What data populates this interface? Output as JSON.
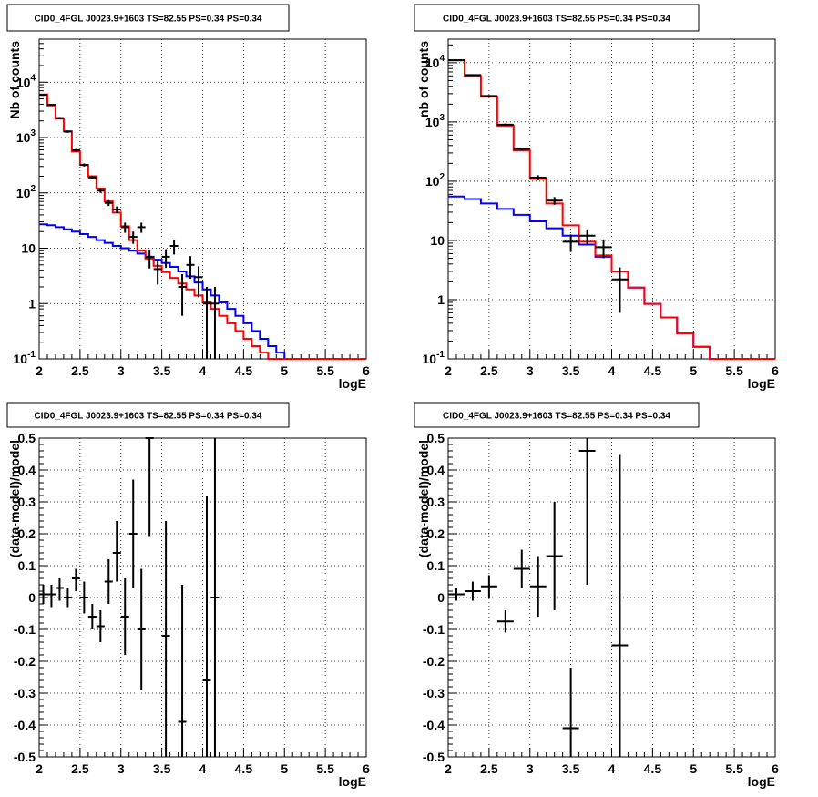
{
  "chart_data": [
    {
      "type": "line",
      "title": "CID0_4FGL J0023.9+1603 TS=82.55 PS=0.34 PS=0.34",
      "xlabel": "logE",
      "ylabel": "Nb of counts",
      "xlim": [
        2,
        6
      ],
      "ylim": [
        0.1,
        60000
      ],
      "yscale": "log",
      "xticks": [
        "2",
        "2.5",
        "3",
        "3.5",
        "4",
        "4.5",
        "5",
        "5.5",
        "6"
      ],
      "yticks": [
        "10^-1",
        "1",
        "10",
        "10^2",
        "10^3",
        "10^4"
      ],
      "grid": true,
      "colors": {
        "total": "#ff0000",
        "background": "#0000ff",
        "data": "#000000"
      },
      "bin_edges": [
        2.0,
        2.1,
        2.2,
        2.3,
        2.4,
        2.5,
        2.6,
        2.7,
        2.8,
        2.9,
        3.0,
        3.1,
        3.2,
        3.3,
        3.4,
        3.5,
        3.6,
        3.7,
        3.8,
        3.9,
        4.0,
        4.1,
        4.2,
        4.3,
        4.4,
        4.5,
        4.6,
        4.7,
        4.8,
        4.9,
        5.0,
        5.1,
        5.2,
        5.3,
        5.4,
        5.5,
        5.6,
        5.7,
        5.8,
        5.9,
        6.0
      ],
      "series": [
        {
          "values": [
            6000,
            3800,
            2200,
            1300,
            560,
            320,
            200,
            120,
            70,
            44,
            25,
            14,
            9.0,
            6.5,
            4.8,
            3.7,
            2.9,
            2.3,
            1.8,
            1.4,
            1.05,
            0.8,
            0.6,
            0.44,
            0.32,
            0.23,
            0.17,
            0.13,
            0.1,
            0.1,
            0.1,
            0.1,
            0.1,
            0.1,
            0.1,
            0.1,
            0.1,
            0.1,
            0.1,
            0.1
          ]
        },
        {
          "values": [
            27,
            26,
            24,
            22,
            20,
            18,
            16,
            14,
            12.5,
            11,
            10,
            9,
            8,
            7,
            6.2,
            5.4,
            4.6,
            3.8,
            3.1,
            2.4,
            1.8,
            1.4,
            1.05,
            0.8,
            0.6,
            0.44,
            0.32,
            0.23,
            0.17,
            0.13,
            0.1,
            0.1,
            0.1,
            0.1,
            0.1,
            0.1,
            0.1,
            0.1,
            0.1,
            0.1
          ]
        }
      ],
      "points": [
        {
          "x": 2.05,
          "y": 5900,
          "lo": 5700,
          "hi": 6100
        },
        {
          "x": 2.15,
          "y": 3900,
          "lo": 3750,
          "hi": 4050
        },
        {
          "x": 2.25,
          "y": 2250,
          "lo": 2150,
          "hi": 2350
        },
        {
          "x": 2.35,
          "y": 1280,
          "lo": 1220,
          "hi": 1340
        },
        {
          "x": 2.45,
          "y": 590,
          "lo": 560,
          "hi": 620
        },
        {
          "x": 2.55,
          "y": 320,
          "lo": 300,
          "hi": 340
        },
        {
          "x": 2.65,
          "y": 190,
          "lo": 177,
          "hi": 203
        },
        {
          "x": 2.75,
          "y": 110,
          "lo": 100,
          "hi": 120
        },
        {
          "x": 2.85,
          "y": 66,
          "lo": 58,
          "hi": 74
        },
        {
          "x": 2.95,
          "y": 50,
          "lo": 43,
          "hi": 57
        },
        {
          "x": 3.05,
          "y": 24,
          "lo": 19,
          "hi": 29
        },
        {
          "x": 3.15,
          "y": 16,
          "lo": 12,
          "hi": 20
        },
        {
          "x": 3.25,
          "y": 24,
          "lo": 19,
          "hi": 29
        },
        {
          "x": 3.35,
          "y": 6.9,
          "lo": 4.3,
          "hi": 9.5
        },
        {
          "x": 3.45,
          "y": 4.2,
          "lo": 2.2,
          "hi": 6.2
        },
        {
          "x": 3.55,
          "y": 7.0,
          "lo": 4.4,
          "hi": 9.6
        },
        {
          "x": 3.65,
          "y": 11,
          "lo": 7.7,
          "hi": 14.3
        },
        {
          "x": 3.75,
          "y": 2.0,
          "lo": 0.6,
          "hi": 3.4
        },
        {
          "x": 3.85,
          "y": 5.0,
          "lo": 2.8,
          "hi": 7.2
        },
        {
          "x": 3.95,
          "y": 3.0,
          "lo": 1.3,
          "hi": 4.7
        },
        {
          "x": 4.05,
          "y": 1.0,
          "lo": 0.1,
          "hi": 2.0
        },
        {
          "x": 4.15,
          "y": 1.0,
          "lo": 0.1,
          "hi": 2.0
        }
      ]
    },
    {
      "type": "line",
      "title": "CID0_4FGL J0023.9+1603 TS=82.55 PS=0.34 PS=0.34",
      "xlabel": "logE",
      "ylabel": "nb of counts",
      "xlim": [
        2,
        6
      ],
      "ylim": [
        0.1,
        25000
      ],
      "yscale": "log",
      "xticks": [
        "2",
        "2.5",
        "3",
        "3.5",
        "4",
        "4.5",
        "5",
        "5.5",
        "6"
      ],
      "yticks": [
        "10^-1",
        "1",
        "10",
        "10^2",
        "10^3",
        "10^4"
      ],
      "grid": true,
      "colors": {
        "total": "#ff0000",
        "background": "#0000ff",
        "data": "#000000"
      },
      "bin_edges": [
        2.0,
        2.2,
        2.4,
        2.6,
        2.8,
        3.0,
        3.2,
        3.4,
        3.6,
        3.8,
        4.0,
        4.2,
        4.4,
        4.6,
        4.8,
        5.0,
        5.2,
        5.4,
        5.6,
        5.8,
        6.0
      ],
      "series": [
        {
          "values": [
            11000,
            6000,
            2700,
            870,
            330,
            110,
            42,
            18,
            9.5,
            5.6,
            3.0,
            1.6,
            0.85,
            0.5,
            0.27,
            0.16,
            0.1,
            0.1,
            0.1,
            0.1
          ]
        },
        {
          "values": [
            55,
            50,
            42,
            34,
            27,
            21,
            16,
            12,
            8.5,
            5.3,
            3.0,
            1.6,
            0.85,
            0.5,
            0.27,
            0.16,
            0.1,
            0.1,
            0.1,
            0.1
          ]
        }
      ],
      "points": [
        {
          "x": 2.1,
          "y": 11000,
          "lo": 10800,
          "hi": 11200
        },
        {
          "x": 2.3,
          "y": 6200,
          "lo": 6050,
          "hi": 6350
        },
        {
          "x": 2.5,
          "y": 2750,
          "lo": 2650,
          "hi": 2850
        },
        {
          "x": 2.7,
          "y": 900,
          "lo": 860,
          "hi": 940
        },
        {
          "x": 2.9,
          "y": 350,
          "lo": 330,
          "hi": 370
        },
        {
          "x": 3.1,
          "y": 115,
          "lo": 104,
          "hi": 126
        },
        {
          "x": 3.3,
          "y": 47,
          "lo": 40,
          "hi": 54
        },
        {
          "x": 3.5,
          "y": 9.5,
          "lo": 6.4,
          "hi": 12.6
        },
        {
          "x": 3.7,
          "y": 12,
          "lo": 8.6,
          "hi": 15.4
        },
        {
          "x": 3.9,
          "y": 7.7,
          "lo": 5.0,
          "hi": 10.4
        },
        {
          "x": 4.1,
          "y": 2.2,
          "lo": 0.6,
          "hi": 3.5
        }
      ]
    },
    {
      "type": "scatter",
      "title": "CID0_4FGL J0023.9+1603 TS=82.55 PS=0.34 PS=0.34",
      "xlabel": "logE",
      "ylabel": "(data-model)/model",
      "xlim": [
        2,
        6
      ],
      "ylim": [
        -0.5,
        0.5
      ],
      "xticks": [
        "2",
        "2.5",
        "3",
        "3.5",
        "4",
        "4.5",
        "5",
        "5.5",
        "6"
      ],
      "yticks": [
        "-0.5",
        "-0.4",
        "-0.3",
        "-0.2",
        "-0.1",
        "0",
        "0.1",
        "0.2",
        "0.3",
        "0.4",
        "0.5"
      ],
      "grid": true,
      "colors": {
        "data": "#000000"
      },
      "xerr": 0.05,
      "points": [
        {
          "x": 2.05,
          "y": 0.01,
          "lo": -0.02,
          "hi": 0.04
        },
        {
          "x": 2.15,
          "y": 0.01,
          "lo": -0.03,
          "hi": 0.04
        },
        {
          "x": 2.25,
          "y": 0.03,
          "lo": -0.01,
          "hi": 0.06
        },
        {
          "x": 2.35,
          "y": 0.0,
          "lo": -0.03,
          "hi": 0.03
        },
        {
          "x": 2.45,
          "y": 0.06,
          "lo": 0.02,
          "hi": 0.09
        },
        {
          "x": 2.55,
          "y": 0.0,
          "lo": -0.05,
          "hi": 0.05
        },
        {
          "x": 2.65,
          "y": -0.06,
          "lo": -0.1,
          "hi": -0.02
        },
        {
          "x": 2.75,
          "y": -0.09,
          "lo": -0.14,
          "hi": -0.04
        },
        {
          "x": 2.85,
          "y": 0.05,
          "lo": -0.02,
          "hi": 0.12
        },
        {
          "x": 2.95,
          "y": 0.14,
          "lo": 0.05,
          "hi": 0.24
        },
        {
          "x": 3.05,
          "y": -0.06,
          "lo": -0.18,
          "hi": 0.06
        },
        {
          "x": 3.15,
          "y": 0.2,
          "lo": 0.03,
          "hi": 0.37
        },
        {
          "x": 3.25,
          "y": -0.1,
          "lo": -0.29,
          "hi": 0.09
        },
        {
          "x": 3.35,
          "y": 0.5,
          "lo": 0.19,
          "hi": 0.5
        },
        {
          "x": 3.55,
          "y": -0.12,
          "lo": -0.5,
          "hi": 0.24
        },
        {
          "x": 3.75,
          "y": -0.39,
          "lo": -0.5,
          "hi": 0.04
        },
        {
          "x": 4.05,
          "y": -0.26,
          "lo": -0.5,
          "hi": 0.32
        },
        {
          "x": 4.15,
          "y": 0.0,
          "lo": -0.5,
          "hi": 0.5
        }
      ]
    },
    {
      "type": "scatter",
      "title": "CID0_4FGL J0023.9+1603 TS=82.55 PS=0.34 PS=0.34",
      "xlabel": "logE",
      "ylabel": "(data-model)/model",
      "xlim": [
        2,
        6
      ],
      "ylim": [
        -0.5,
        0.5
      ],
      "xticks": [
        "2",
        "2.5",
        "3",
        "3.5",
        "4",
        "4.5",
        "5",
        "5.5",
        "6"
      ],
      "yticks": [
        "-0.5",
        "-0.4",
        "-0.3",
        "-0.2",
        "-0.1",
        "0",
        "0.1",
        "0.2",
        "0.3",
        "0.4",
        "0.5"
      ],
      "grid": true,
      "colors": {
        "data": "#000000"
      },
      "xerr": 0.1,
      "points": [
        {
          "x": 2.1,
          "y": 0.01,
          "lo": -0.01,
          "hi": 0.03
        },
        {
          "x": 2.3,
          "y": 0.02,
          "lo": -0.01,
          "hi": 0.05
        },
        {
          "x": 2.5,
          "y": 0.035,
          "lo": 0.0,
          "hi": 0.07
        },
        {
          "x": 2.7,
          "y": -0.075,
          "lo": -0.11,
          "hi": -0.04
        },
        {
          "x": 2.9,
          "y": 0.09,
          "lo": 0.03,
          "hi": 0.15
        },
        {
          "x": 3.1,
          "y": 0.035,
          "lo": -0.06,
          "hi": 0.13
        },
        {
          "x": 3.3,
          "y": 0.13,
          "lo": -0.04,
          "hi": 0.3
        },
        {
          "x": 3.5,
          "y": -0.41,
          "lo": -0.5,
          "hi": -0.22
        },
        {
          "x": 3.7,
          "y": 0.46,
          "lo": 0.04,
          "hi": 0.5
        },
        {
          "x": 4.1,
          "y": -0.15,
          "lo": -0.5,
          "hi": 0.45
        }
      ]
    }
  ]
}
